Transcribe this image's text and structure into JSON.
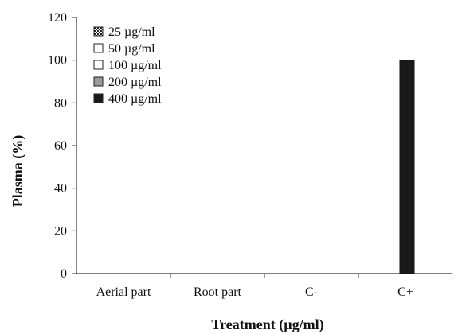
{
  "chart_data": {
    "type": "bar",
    "title": "",
    "xlabel": "Treatment (µg/ml)",
    "ylabel": "Plasma (%)",
    "ylim": [
      0,
      120
    ],
    "yticks": [
      0,
      20,
      40,
      60,
      80,
      100,
      120
    ],
    "categories": [
      "Aerial part",
      "Root part",
      "C-",
      "C+"
    ],
    "legend_position": "top-left",
    "grid": false,
    "series": [
      {
        "name": "25 µg/ml",
        "values": [
          0,
          0,
          null,
          null
        ],
        "fill": "#ffffff",
        "pattern": "checker"
      },
      {
        "name": "50 µg/ml",
        "values": [
          0,
          0,
          null,
          null
        ],
        "fill": "#ffffff",
        "pattern": "none"
      },
      {
        "name": "100 µg/ml",
        "values": [
          0,
          0,
          null,
          null
        ],
        "fill": "#ffffff",
        "pattern": "none"
      },
      {
        "name": "200 µg/ml",
        "values": [
          0,
          0,
          null,
          null
        ],
        "fill": "#9a9a9a",
        "pattern": "none"
      },
      {
        "name": "400 µg/ml",
        "values": [
          0,
          0,
          0,
          100
        ],
        "fill": "#1a1a1a",
        "pattern": "none"
      }
    ]
  }
}
